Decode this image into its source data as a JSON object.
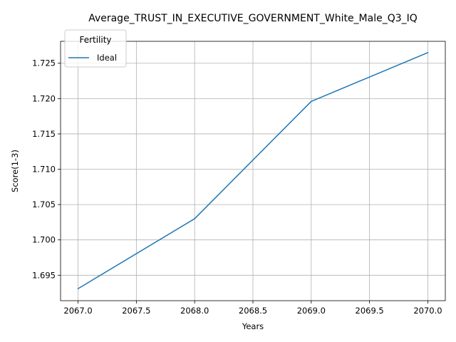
{
  "chart_data": {
    "type": "line",
    "title": "Average_TRUST_IN_EXECUTIVE_GOVERNMENT_White_Male_Q3_IQ",
    "xlabel": "Years",
    "ylabel": "Score(1-3)",
    "xlim": [
      2066.85,
      2070.15
    ],
    "ylim": [
      1.6914,
      1.7281
    ],
    "xticks": [
      "2067.0",
      "2067.5",
      "2068.0",
      "2068.5",
      "2069.0",
      "2069.5",
      "2070.0"
    ],
    "xtick_values": [
      2067.0,
      2067.5,
      2068.0,
      2068.5,
      2069.0,
      2069.5,
      2070.0
    ],
    "yticks": [
      "1.695",
      "1.700",
      "1.705",
      "1.710",
      "1.715",
      "1.720",
      "1.725"
    ],
    "ytick_values": [
      1.695,
      1.7,
      1.705,
      1.71,
      1.715,
      1.72,
      1.725
    ],
    "grid": true,
    "legend": {
      "title": "Fertility",
      "position": "top-left"
    },
    "series": [
      {
        "name": "Ideal",
        "color": "#1f77b4",
        "x": [
          2067,
          2068,
          2069,
          2070
        ],
        "y": [
          1.6931,
          1.703,
          1.7196,
          1.7265
        ]
      }
    ]
  }
}
